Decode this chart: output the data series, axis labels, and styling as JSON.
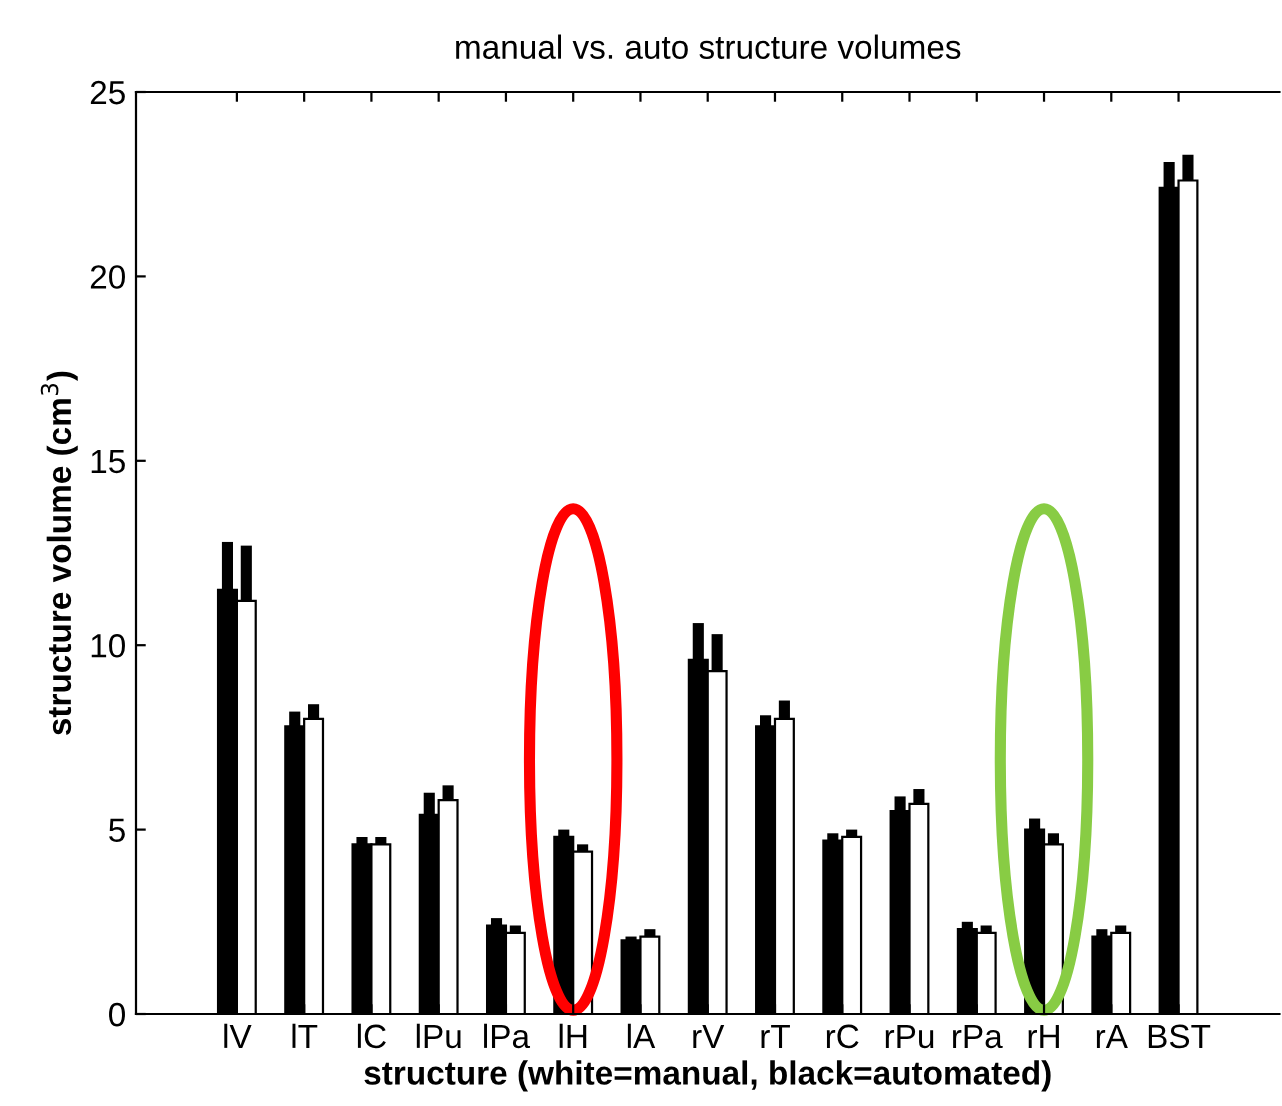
{
  "chart_data": {
    "type": "bar",
    "title": "manual vs. auto structure volumes",
    "xlabel": "structure (white=manual, black=automated)",
    "ylabel": "structure volume (cm$^{3}$)",
    "categories": [
      "lV",
      "lT",
      "lC",
      "lPu",
      "lPa",
      "lH",
      "lA",
      "rV",
      "rT",
      "rC",
      "rPu",
      "rPa",
      "rH",
      "rA",
      "BST"
    ],
    "series": [
      {
        "color": "#000000",
        "values": [
          11.5,
          7.8,
          4.6,
          5.4,
          2.4,
          4.8,
          2.0,
          9.6,
          7.8,
          4.7,
          5.5,
          2.3,
          5.0,
          2.1,
          22.4
        ],
        "errors": [
          [
            11.5,
            12.8
          ],
          [
            7.8,
            8.2
          ],
          [
            4.6,
            4.8
          ],
          [
            5.4,
            6.0
          ],
          [
            2.4,
            2.6
          ],
          [
            4.8,
            5.0
          ],
          [
            2.0,
            2.1
          ],
          [
            9.6,
            10.6
          ],
          [
            7.8,
            8.1
          ],
          [
            4.7,
            4.9
          ],
          [
            5.5,
            5.9
          ],
          [
            2.3,
            2.5
          ],
          [
            5.0,
            5.3
          ],
          [
            2.1,
            2.3
          ],
          [
            22.4,
            23.1
          ]
        ]
      },
      {
        "color": "#ffffff",
        "values": [
          11.2,
          8.0,
          4.6,
          5.8,
          2.2,
          4.4,
          2.1,
          9.3,
          8.0,
          4.8,
          5.7,
          2.2,
          4.6,
          2.2,
          22.6
        ],
        "errors": [
          [
            11.2,
            12.7
          ],
          [
            8.0,
            8.4
          ],
          [
            4.6,
            4.8
          ],
          [
            5.8,
            6.2
          ],
          [
            2.2,
            2.4
          ],
          [
            4.4,
            4.6
          ],
          [
            2.1,
            2.3
          ],
          [
            9.3,
            10.3
          ],
          [
            8.0,
            8.5
          ],
          [
            4.8,
            5.0
          ],
          [
            5.7,
            6.1
          ],
          [
            2.2,
            2.4
          ],
          [
            4.6,
            4.9
          ],
          [
            2.2,
            2.4
          ],
          [
            22.6,
            23.3
          ]
        ]
      }
    ],
    "ylim": [
      0,
      25
    ],
    "yticks": [
      0,
      5,
      10,
      15,
      20,
      25
    ],
    "grid": false,
    "legend": false
  }
}
